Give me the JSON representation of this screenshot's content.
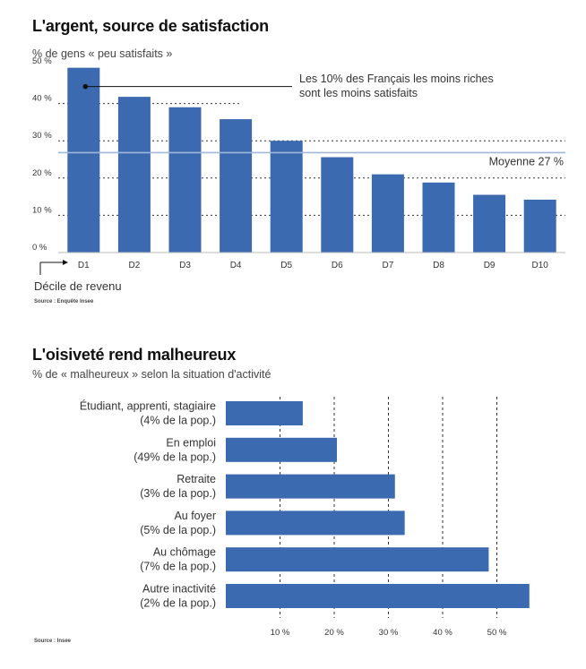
{
  "colors": {
    "bar": "#3c6ab0",
    "grid": "#333333",
    "text": "#222222",
    "mean_line": "#9fb7d8"
  },
  "chart_data": [
    {
      "type": "bar",
      "title": "L'argent, source de satisfaction",
      "ylabel": "% de gens « peu satisfaits »",
      "xlabel": "Décile de revenu",
      "source": "Source : Enquête Insee",
      "categories": [
        "D1",
        "D2",
        "D3",
        "D4",
        "D5",
        "D6",
        "D7",
        "D8",
        "D9",
        "D10"
      ],
      "values": [
        49.6,
        41.8,
        39.0,
        35.8,
        30.0,
        25.6,
        21.0,
        18.8,
        15.5,
        14.2
      ],
      "yticks": [
        "0 %",
        "10 %",
        "20 %",
        "30 %",
        "40 %",
        "50 %"
      ],
      "ylim": [
        0,
        50
      ],
      "mean": 27,
      "mean_label": "Moyenne 27 %",
      "annotation_line1": "Les 10% des Français les moins riches",
      "annotation_line2": "sont les moins satisfaits"
    },
    {
      "type": "bar",
      "orientation": "horizontal",
      "title": "L'oisiveté rend malheureux",
      "xlabel": "% de « malheureux » selon la situation d'activité",
      "source": "Source : Insee",
      "categories": [
        {
          "line1": "Étudiant, apprenti, stagiaire",
          "line2": "(4% de la pop.)"
        },
        {
          "line1": "En emploi",
          "line2": "(49% de la pop.)"
        },
        {
          "line1": "Retraite",
          "line2": "(3% de la pop.)"
        },
        {
          "line1": "Au foyer",
          "line2": "(5% de la pop.)"
        },
        {
          "line1": "Au chômage",
          "line2": "(7% de la pop.)"
        },
        {
          "line1": "Autre inactivité",
          "line2": "(2% de la pop.)"
        }
      ],
      "values": [
        14.2,
        20.5,
        31.2,
        33.0,
        48.5,
        56.0
      ],
      "xticks": [
        "10 %",
        "20 %",
        "30 %",
        "40 %",
        "50 %"
      ],
      "xlim": [
        0,
        60
      ]
    }
  ]
}
